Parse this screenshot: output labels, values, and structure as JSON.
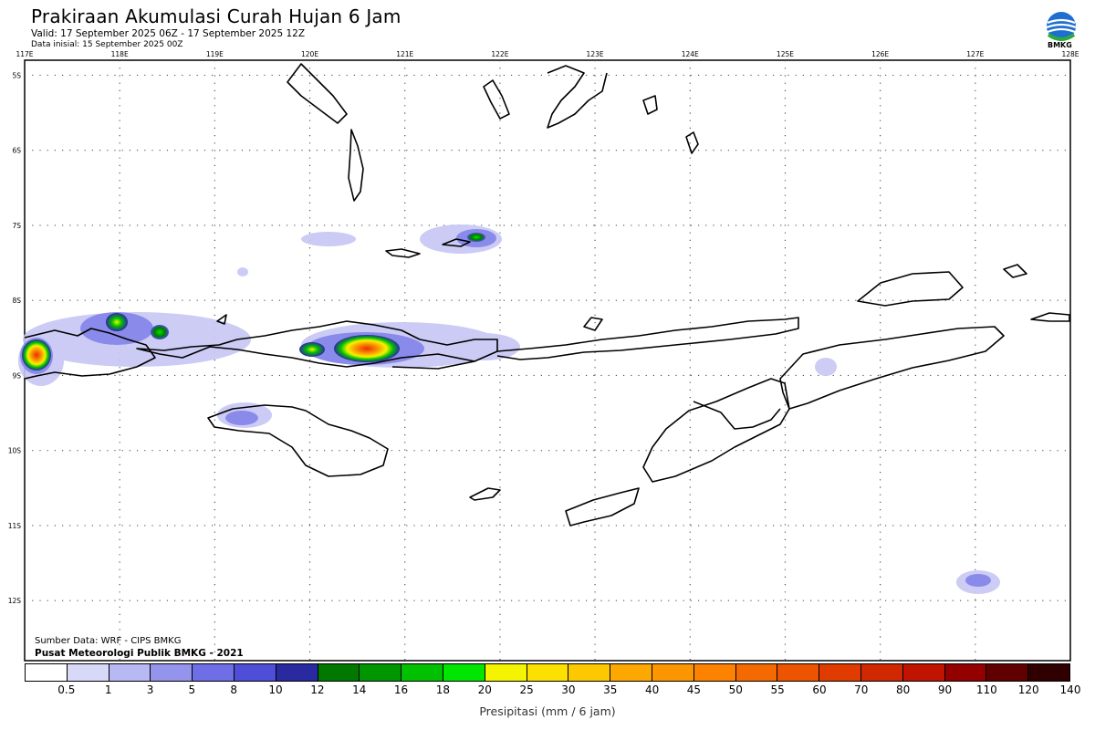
{
  "header": {
    "title": "Prakiraan Akumulasi Curah Hujan 6 Jam",
    "valid": "Valid: 17 September 2025 06Z - 17 September 2025 12Z",
    "initial": "Data inisial: 15 September 2025 00Z",
    "logo_text": "BMKG"
  },
  "footer": {
    "source": "Sumber Data: WRF - CIPS BMKG",
    "publisher": "Pusat Meteorologi Publik BMKG - 2021"
  },
  "map": {
    "lon_labels": [
      "117E",
      "118E",
      "119E",
      "120E",
      "121E",
      "122E",
      "123E",
      "124E",
      "125E",
      "126E",
      "127E",
      "128E"
    ],
    "lat_labels": [
      "5S",
      "6S",
      "7S",
      "8S",
      "9S",
      "10S",
      "11S",
      "12S"
    ],
    "lon_range": [
      117,
      128
    ],
    "lat_range": [
      -4.8,
      -12.8
    ]
  },
  "legend": {
    "title": "Presipitasi (mm / 6 jam)",
    "labels": [
      "0.5",
      "1",
      "3",
      "5",
      "8",
      "10",
      "12",
      "14",
      "16",
      "18",
      "20",
      "25",
      "30",
      "35",
      "40",
      "45",
      "50",
      "55",
      "60",
      "70",
      "80",
      "90",
      "110",
      "120",
      "140"
    ],
    "colors": [
      "#ffffff",
      "#d8d8f8",
      "#b8b8f2",
      "#9494ec",
      "#6e6ee6",
      "#4e4ed8",
      "#2a2aa0",
      "#007800",
      "#009600",
      "#00c000",
      "#00e600",
      "#f4f400",
      "#fce000",
      "#fcc800",
      "#fca800",
      "#fc9600",
      "#fc8200",
      "#f46a00",
      "#ec5400",
      "#e03c00",
      "#d02800",
      "#c01400",
      "#940000",
      "#600000",
      "#300000"
    ]
  }
}
